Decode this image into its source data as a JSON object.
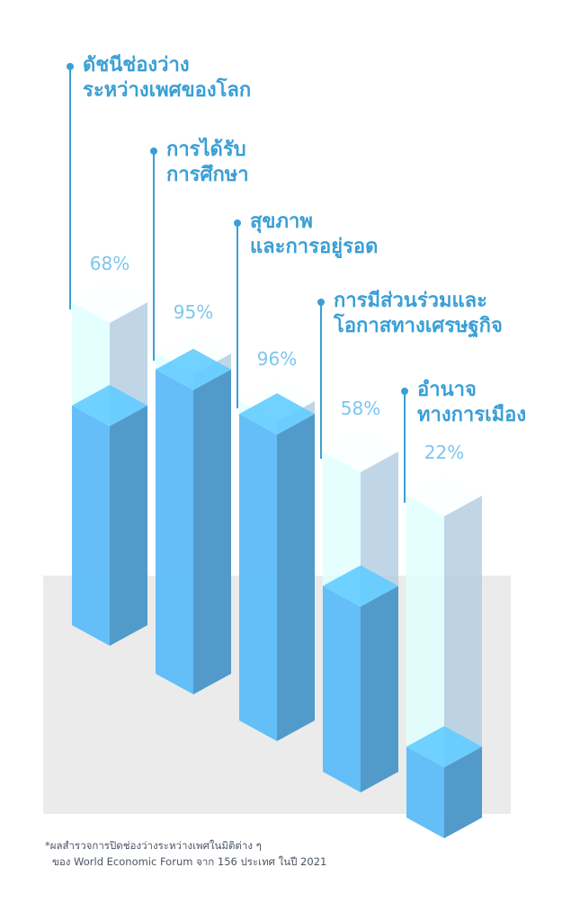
{
  "chart_data": {
    "type": "bar",
    "style": "3d-columns",
    "colors": {
      "solid": "#4ea3dc",
      "glass": "#c9e6fb",
      "label": "#3a9fd6",
      "percent": "#7cc6ef",
      "backdrop": "#ebebeb"
    },
    "categories": [
      [
        "ดัชนีช่องว่าง",
        "ระหว่างเพศของโลก"
      ],
      [
        "การได้รับ",
        "การศึกษา"
      ],
      [
        "สุขภาพ",
        "และการอยู่รอด"
      ],
      [
        "การมีส่วนร่วมและ",
        "โอกาสทางเศรษฐกิจ"
      ],
      [
        "อำนาจ",
        "ทางการเมือง"
      ]
    ],
    "values": [
      68,
      95,
      96,
      58,
      22
    ],
    "value_labels": [
      "68%",
      "95%",
      "96%",
      "58%",
      "22%"
    ],
    "ylim": [
      0,
      100
    ]
  },
  "footnote": {
    "line1": "*ผลสำรวจการปิดช่องว่างระหว่างเพศในมิติต่าง ๆ",
    "line2": "ของ World Economic Forum จาก 156 ประเทศ ในปี 2021"
  }
}
